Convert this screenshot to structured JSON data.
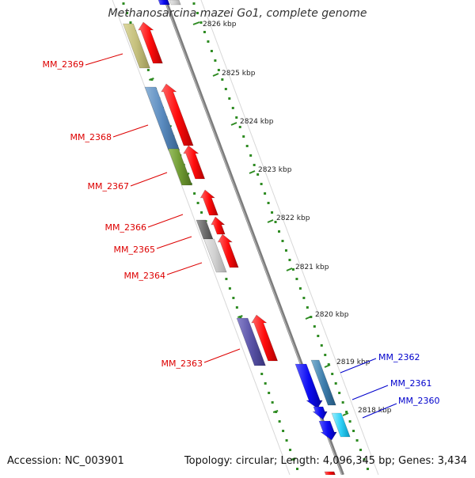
{
  "title": "Methanosarcina mazei Go1, complete genome",
  "footer": {
    "accession": "Accession: NC_003901",
    "summary": "Topology: circular; Length: 4,096,345 bp; Genes: 3,434"
  },
  "colors": {
    "backbone": "#8c8c8c",
    "tick": "#2e8b22",
    "red": "#ff1010",
    "blue": "#1010ee",
    "label_red": "#dd0000",
    "label_blue": "#0000cc"
  },
  "kbp_ticks": [
    "2826 kbp",
    "2825 kbp",
    "2824 kbp",
    "2823 kbp",
    "2822 kbp",
    "2821 kbp",
    "2820 kbp",
    "2819 kbp",
    "2818 kbp"
  ],
  "gene_labels": [
    {
      "name": "MM_2369",
      "color": "red"
    },
    {
      "name": "MM_2368",
      "color": "red"
    },
    {
      "name": "MM_2367",
      "color": "red"
    },
    {
      "name": "MM_2366",
      "color": "red"
    },
    {
      "name": "MM_2365",
      "color": "red"
    },
    {
      "name": "MM_2364",
      "color": "red"
    },
    {
      "name": "MM_2363",
      "color": "red"
    },
    {
      "name": "MM_2362",
      "color": "blue"
    },
    {
      "name": "MM_2361",
      "color": "blue"
    },
    {
      "name": "MM_2360",
      "color": "blue"
    }
  ]
}
